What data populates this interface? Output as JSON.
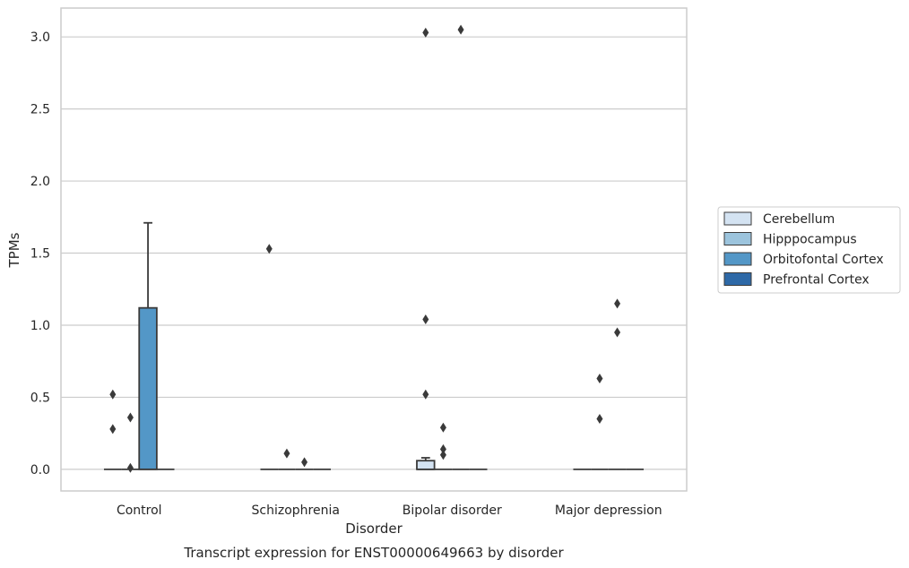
{
  "caption": "Transcript expression for ENST00000649663 by disorder",
  "colors": {
    "Cerebellum": "#d4e3f2",
    "Hipppocampus": "#9cc4dd",
    "Orbitofontal Cortex": "#5397c7",
    "Prefrontal Cortex": "#2e69a7",
    "box_edge": "#3a3a3a",
    "grid": "#cccccc",
    "frame": "#cccccc"
  },
  "chart_data": {
    "type": "box",
    "xlabel": "Disorder",
    "ylabel": "TPMs",
    "ylim": [
      -0.15,
      3.2
    ],
    "yticks": [
      0.0,
      0.5,
      1.0,
      1.5,
      2.0,
      2.5,
      3.0
    ],
    "ytick_labels": [
      "0.0",
      "0.5",
      "1.0",
      "1.5",
      "2.0",
      "2.5",
      "3.0"
    ],
    "grid": "horizontal",
    "categories": [
      "Control",
      "Schizophrenia",
      "Bipolar disorder",
      "Major depression"
    ],
    "legend": {
      "placement": "right, outside",
      "entries": [
        "Cerebellum",
        "Hipppocampus",
        "Orbitofontal Cortex",
        "Prefrontal Cortex"
      ]
    },
    "series": [
      {
        "name": "Cerebellum",
        "boxes": [
          {
            "category": "Control",
            "q1": 0,
            "median": 0,
            "q3": 0,
            "whisker_low": 0,
            "whisker_high": 0,
            "outliers": [
              0.52,
              0.28
            ]
          },
          {
            "category": "Schizophrenia",
            "q1": 0,
            "median": 0,
            "q3": 0,
            "whisker_low": 0,
            "whisker_high": 0,
            "outliers": [
              1.53
            ]
          },
          {
            "category": "Bipolar disorder",
            "q1": 0,
            "median": 0,
            "q3": 0.06,
            "whisker_low": 0,
            "whisker_high": 0.08,
            "outliers": [
              3.03,
              1.04,
              0.52
            ]
          },
          {
            "category": "Major depression",
            "q1": 0,
            "median": 0,
            "q3": 0,
            "whisker_low": 0,
            "whisker_high": 0,
            "outliers": []
          }
        ]
      },
      {
        "name": "Hipppocampus",
        "boxes": [
          {
            "category": "Control",
            "q1": 0,
            "median": 0,
            "q3": 0,
            "whisker_low": 0,
            "whisker_high": 0,
            "outliers": [
              0.36,
              0.01
            ]
          },
          {
            "category": "Schizophrenia",
            "q1": 0,
            "median": 0,
            "q3": 0,
            "whisker_low": 0,
            "whisker_high": 0,
            "outliers": [
              0.11
            ]
          },
          {
            "category": "Bipolar disorder",
            "q1": 0,
            "median": 0,
            "q3": 0,
            "whisker_low": 0,
            "whisker_high": 0,
            "outliers": [
              0.29,
              0.14,
              0.1
            ]
          },
          {
            "category": "Major depression",
            "q1": 0,
            "median": 0,
            "q3": 0,
            "whisker_low": 0,
            "whisker_high": 0,
            "outliers": [
              0.63,
              0.35
            ]
          }
        ]
      },
      {
        "name": "Orbitofontal Cortex",
        "boxes": [
          {
            "category": "Control",
            "q1": 0,
            "median": 0,
            "q3": 1.12,
            "whisker_low": 0,
            "whisker_high": 1.71,
            "outliers": []
          },
          {
            "category": "Schizophrenia",
            "q1": 0,
            "median": 0,
            "q3": 0,
            "whisker_low": 0,
            "whisker_high": 0,
            "outliers": [
              0.05
            ]
          },
          {
            "category": "Bipolar disorder",
            "q1": 0,
            "median": 0,
            "q3": 0,
            "whisker_low": 0,
            "whisker_high": 0,
            "outliers": [
              3.05
            ]
          },
          {
            "category": "Major depression",
            "q1": 0,
            "median": 0,
            "q3": 0,
            "whisker_low": 0,
            "whisker_high": 0,
            "outliers": [
              1.15,
              0.95
            ]
          }
        ]
      },
      {
        "name": "Prefrontal Cortex",
        "boxes": [
          {
            "category": "Control",
            "q1": 0,
            "median": 0,
            "q3": 0,
            "whisker_low": 0,
            "whisker_high": 0,
            "outliers": []
          },
          {
            "category": "Schizophrenia",
            "q1": 0,
            "median": 0,
            "q3": 0,
            "whisker_low": 0,
            "whisker_high": 0,
            "outliers": []
          },
          {
            "category": "Bipolar disorder",
            "q1": 0,
            "median": 0,
            "q3": 0,
            "whisker_low": 0,
            "whisker_high": 0,
            "outliers": []
          },
          {
            "category": "Major depression",
            "q1": 0,
            "median": 0,
            "q3": 0,
            "whisker_low": 0,
            "whisker_high": 0,
            "outliers": []
          }
        ]
      }
    ]
  }
}
